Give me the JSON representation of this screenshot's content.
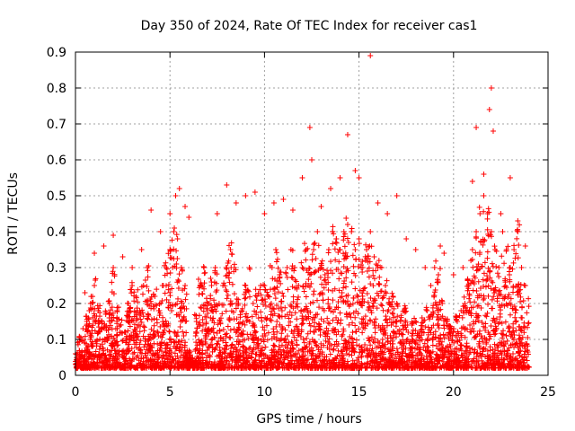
{
  "chart_data": {
    "type": "scatter",
    "title": "Day 350 of 2024, Rate Of TEC Index for receiver cas1",
    "xlabel": "GPS time / hours",
    "ylabel": "ROTI / TECUs",
    "xlim": [
      0,
      25
    ],
    "ylim": [
      0,
      0.9
    ],
    "xticks": [
      "0",
      "5",
      "10",
      "15",
      "20",
      "25"
    ],
    "yticks": [
      "0",
      "0.1",
      "0.2",
      "0.3",
      "0.4",
      "0.5",
      "0.6",
      "0.7",
      "0.8",
      "0.9"
    ],
    "grid": true,
    "marker": "+",
    "color": "#ff0000",
    "series": [
      {
        "x": [
          0.0,
          0.2,
          0.4,
          0.6,
          0.8,
          1.0,
          1.2,
          1.4,
          1.6,
          1.8,
          2.0,
          2.2,
          2.4,
          2.6,
          2.8,
          3.0,
          3.2,
          3.4,
          3.6,
          3.8,
          4.0,
          4.2,
          4.4,
          4.6,
          4.8,
          5.0,
          5.2,
          5.4,
          5.6,
          5.8,
          6.0,
          6.2,
          6.4,
          6.6,
          6.8,
          7.0,
          7.2,
          7.4,
          7.6,
          7.8,
          8.0,
          8.2,
          8.4,
          8.6,
          8.8,
          9.0,
          9.2,
          9.4,
          9.6,
          9.8,
          10.0,
          10.2,
          10.4,
          10.6,
          10.8,
          11.0,
          11.2,
          11.4,
          11.6,
          11.8,
          12.0,
          12.2,
          12.4,
          12.6,
          12.8,
          13.0,
          13.2,
          13.4,
          13.6,
          13.8,
          14.0,
          14.2,
          14.4,
          14.6,
          14.8,
          15.0,
          15.2,
          15.4,
          15.6,
          15.8,
          16.0,
          16.2,
          16.4,
          16.6,
          16.8,
          17.0,
          17.2,
          17.4,
          17.6,
          17.8,
          18.0,
          18.2,
          18.4,
          18.6,
          18.8,
          19.0,
          19.2,
          19.4,
          19.6,
          19.8,
          20.0,
          20.2,
          20.4,
          20.6,
          20.8,
          21.0,
          21.2,
          21.4,
          21.6,
          21.8,
          22.0,
          22.2,
          22.4,
          22.6,
          22.8,
          23.0,
          23.2,
          23.4,
          23.6,
          23.8,
          0.5,
          1.0,
          1.5,
          2.0,
          2.5,
          3.0,
          3.5,
          4.0,
          4.5,
          5.0,
          5.3,
          5.5,
          5.8,
          6.0,
          7.5,
          8.0,
          8.5,
          9.0,
          9.5,
          10.0,
          10.5,
          11.0,
          11.5,
          12.0,
          12.4,
          12.5,
          13.0,
          13.5,
          14.0,
          14.4,
          14.8,
          15.0,
          15.6,
          16.0,
          16.5,
          17.0,
          17.5,
          18.0,
          18.5,
          19.3,
          19.5,
          20.0,
          20.5,
          21.0,
          21.2,
          21.6,
          21.9,
          22.0,
          22.1,
          22.5,
          23.0,
          23.4,
          23.8
        ],
        "y": [
          0.06,
          0.1,
          0.13,
          0.15,
          0.2,
          0.25,
          0.18,
          0.15,
          0.17,
          0.2,
          0.3,
          0.18,
          0.14,
          0.12,
          0.2,
          0.25,
          0.22,
          0.18,
          0.25,
          0.3,
          0.2,
          0.22,
          0.18,
          0.25,
          0.3,
          0.35,
          0.4,
          0.38,
          0.3,
          0.25,
          0.05,
          0.03,
          0.15,
          0.25,
          0.3,
          0.2,
          0.25,
          0.3,
          0.2,
          0.25,
          0.3,
          0.35,
          0.3,
          0.2,
          0.18,
          0.25,
          0.3,
          0.2,
          0.22,
          0.25,
          0.25,
          0.22,
          0.3,
          0.35,
          0.28,
          0.22,
          0.3,
          0.35,
          0.3,
          0.25,
          0.3,
          0.35,
          0.28,
          0.35,
          0.4,
          0.3,
          0.28,
          0.35,
          0.4,
          0.38,
          0.35,
          0.4,
          0.42,
          0.4,
          0.35,
          0.38,
          0.3,
          0.35,
          0.4,
          0.33,
          0.3,
          0.3,
          0.25,
          0.2,
          0.22,
          0.2,
          0.15,
          0.18,
          0.12,
          0.14,
          0.15,
          0.12,
          0.15,
          0.18,
          0.25,
          0.3,
          0.28,
          0.2,
          0.15,
          0.12,
          0.12,
          0.15,
          0.18,
          0.2,
          0.25,
          0.35,
          0.4,
          0.45,
          0.5,
          0.45,
          0.4,
          0.35,
          0.3,
          0.4,
          0.35,
          0.3,
          0.35,
          0.4,
          0.3,
          0.25,
          0.23,
          0.34,
          0.36,
          0.39,
          0.33,
          0.3,
          0.35,
          0.46,
          0.4,
          0.45,
          0.5,
          0.52,
          0.47,
          0.44,
          0.45,
          0.53,
          0.48,
          0.5,
          0.51,
          0.45,
          0.48,
          0.49,
          0.46,
          0.55,
          0.69,
          0.6,
          0.47,
          0.52,
          0.55,
          0.67,
          0.57,
          0.55,
          0.89,
          0.48,
          0.45,
          0.5,
          0.38,
          0.35,
          0.3,
          0.36,
          0.34,
          0.28,
          0.3,
          0.54,
          0.69,
          0.56,
          0.74,
          0.8,
          0.68,
          0.45,
          0.55,
          0.43,
          0.36
        ],
        "note_density": "dense band of points between 0.02 and 0.2 across the whole day"
      }
    ]
  }
}
